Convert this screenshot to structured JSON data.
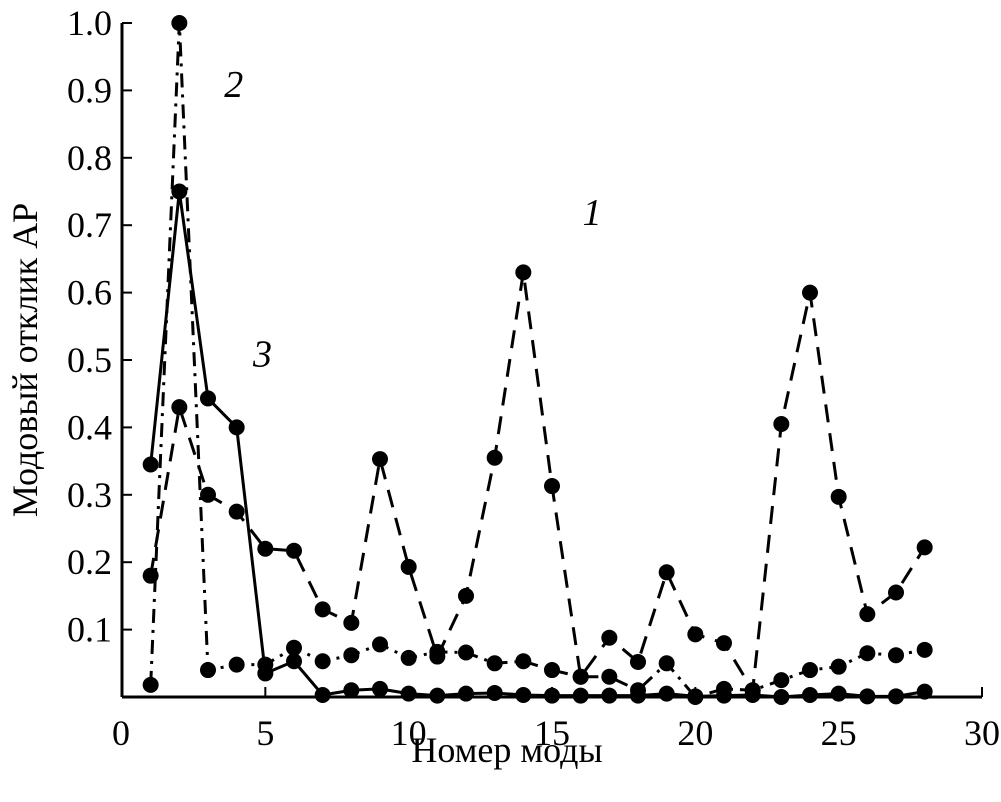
{
  "chart_data": {
    "type": "line",
    "xlabel": "Номер моды",
    "ylabel": "Модовый отклик АР",
    "xlim": [
      0,
      30
    ],
    "ylim": [
      0,
      1.0
    ],
    "x_ticks": [
      "0",
      "5",
      "10",
      "15",
      "20",
      "25",
      "30"
    ],
    "y_ticks": [
      "0.1",
      "0.2",
      "0.3",
      "0.4",
      "0.5",
      "0.6",
      "0.7",
      "0.8",
      "0.9",
      "1.0"
    ],
    "grid": false,
    "legend": "none",
    "x": [
      1,
      2,
      3,
      4,
      5,
      6,
      7,
      8,
      9,
      10,
      11,
      12,
      13,
      14,
      15,
      16,
      17,
      18,
      19,
      20,
      21,
      22,
      23,
      24,
      25,
      26,
      27,
      28
    ],
    "series": [
      {
        "label": "1",
        "line_style": "dashed",
        "values": [
          0.18,
          0.43,
          0.3,
          0.275,
          0.22,
          0.217,
          0.13,
          0.11,
          0.353,
          0.193,
          0.06,
          0.15,
          0.355,
          0.63,
          0.313,
          0.03,
          0.088,
          0.052,
          0.185,
          0.093,
          0.08,
          0.01,
          0.405,
          0.6,
          0.297,
          0.123,
          0.155,
          0.222
        ]
      },
      {
        "label": "2",
        "line_style": "dash-dot",
        "values": [
          0.018,
          1.0,
          0.04,
          0.048,
          0.048,
          0.073,
          0.053,
          0.062,
          0.078,
          0.058,
          0.067,
          0.066,
          0.05,
          0.053,
          0.04,
          0.03,
          0.03,
          0.01,
          0.05,
          0.0,
          0.012,
          0.01,
          0.025,
          0.04,
          0.045,
          0.065,
          0.062,
          0.07
        ]
      },
      {
        "label": "3",
        "line_style": "solid",
        "values": [
          0.345,
          0.75,
          0.443,
          0.4,
          0.035,
          0.053,
          0.003,
          0.01,
          0.012,
          0.005,
          0.002,
          0.005,
          0.006,
          0.003,
          0.002,
          0.002,
          0.002,
          0.002,
          0.005,
          0.001,
          0.002,
          0.003,
          0.0,
          0.003,
          0.005,
          0.001,
          0.001,
          0.008
        ]
      }
    ],
    "curve_labels": [
      {
        "text": "1",
        "anchor_x": 16.4,
        "anchor_y": 0.7
      },
      {
        "text": "2",
        "anchor_x": 3.9,
        "anchor_y": 0.89
      },
      {
        "text": "3",
        "anchor_x": 4.9,
        "anchor_y": 0.49
      }
    ]
  }
}
